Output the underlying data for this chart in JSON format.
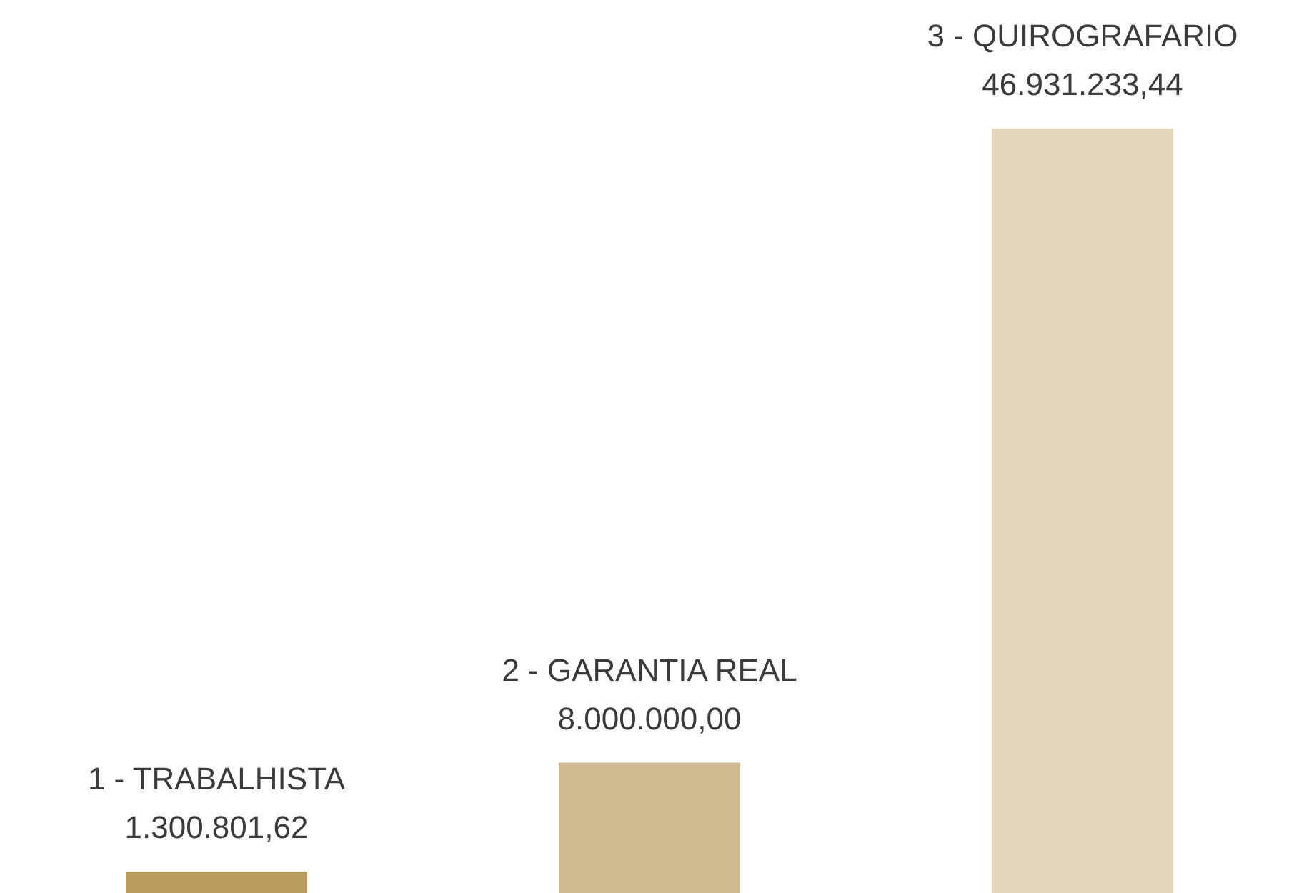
{
  "chart_data": {
    "type": "bar",
    "categories": [
      "1 - TRABALHISTA",
      "2 - GARANTIA REAL",
      "3 - QUIROGRAFARIO"
    ],
    "values": [
      1300801.62,
      8000000,
      46931233.44
    ],
    "colors": [
      "#b99b5f",
      "#cfb98f",
      "#e3d8be"
    ],
    "value_labels": [
      "1.300.801,62",
      "8.000.000,00",
      "46.931.233,44"
    ]
  }
}
